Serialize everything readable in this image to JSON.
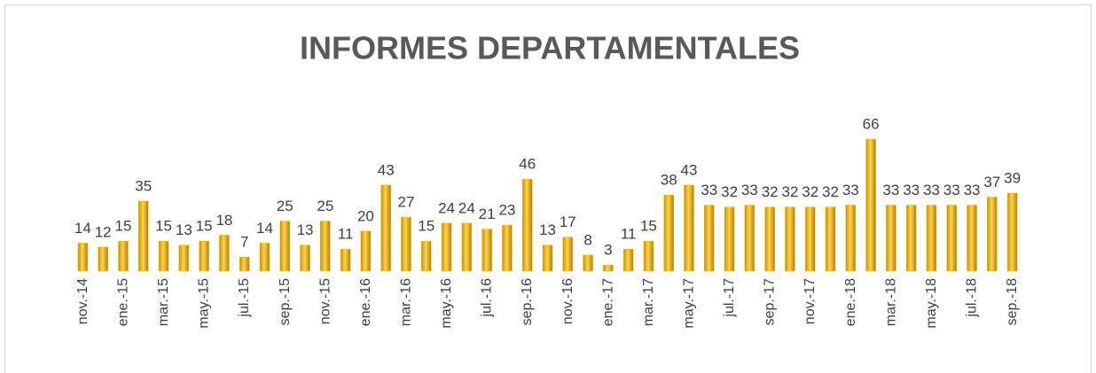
{
  "chart_data": {
    "type": "bar",
    "title": "INFORMES DEPARTAMENTALES",
    "categories": [
      "nov.-14",
      null,
      "ene.-15",
      null,
      "mar.-15",
      null,
      "may.-15",
      null,
      "jul.-15",
      null,
      "sep.-15",
      null,
      "nov.-15",
      null,
      "ene.-16",
      null,
      "mar.-16",
      null,
      "may.-16",
      null,
      "jul.-16",
      null,
      "sep.-16",
      null,
      "nov.-16",
      null,
      "ene.-17",
      null,
      "mar.-17",
      null,
      "may.-17",
      null,
      "jul.-17",
      null,
      "sep.-17",
      null,
      "nov.-17",
      null,
      "ene.-18",
      null,
      "mar.-18",
      null,
      "may.-18",
      null,
      "jul.-18",
      null,
      "sep.-18"
    ],
    "values": [
      14,
      12,
      15,
      35,
      15,
      13,
      15,
      18,
      7,
      14,
      25,
      13,
      25,
      11,
      20,
      43,
      27,
      15,
      24,
      24,
      21,
      23,
      46,
      13,
      17,
      8,
      3,
      11,
      15,
      38,
      43,
      33,
      32,
      33,
      32,
      32,
      32,
      32,
      33,
      66,
      33,
      33,
      33,
      33,
      33,
      37,
      39
    ],
    "color": "#f5b800"
  }
}
